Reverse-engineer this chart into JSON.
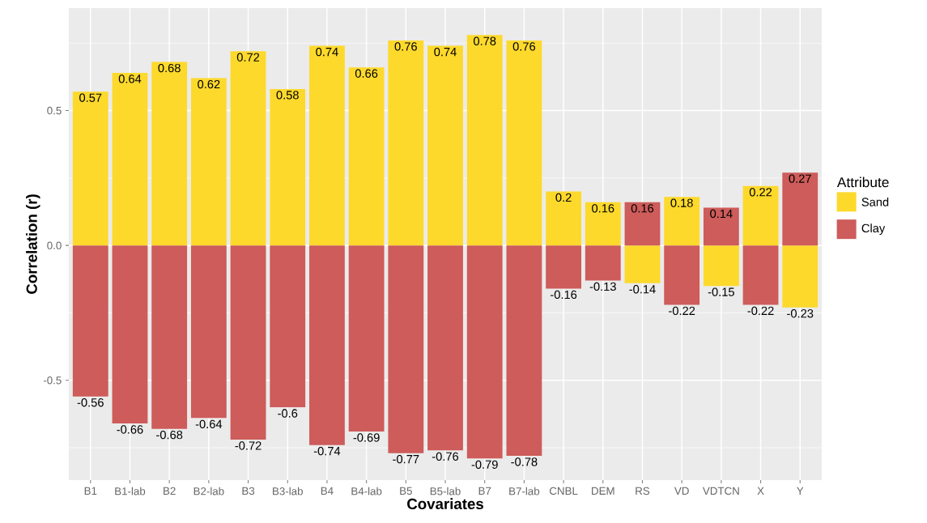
{
  "chart_data": {
    "type": "bar",
    "stacked": true,
    "xlabel": "Covariates",
    "ylabel": "Correlation (r)",
    "legend_title": "Attribute",
    "legend": "right",
    "grid": true,
    "data_labels": true,
    "categories": [
      "B1",
      "B1-lab",
      "B2",
      "B2-lab",
      "B3",
      "B3-lab",
      "B4",
      "B4-lab",
      "B5",
      "B5-lab",
      "B7",
      "B7-lab",
      "CNBL",
      "DEM",
      "RS",
      "VD",
      "VDTCN",
      "X",
      "Y"
    ],
    "series": [
      {
        "name": "Sand",
        "color": "#fdd92c",
        "values": [
          0.57,
          0.64,
          0.68,
          0.62,
          0.72,
          0.58,
          0.74,
          0.66,
          0.76,
          0.74,
          0.78,
          0.76,
          0.2,
          0.16,
          -0.14,
          0.18,
          -0.15,
          0.22,
          -0.23
        ]
      },
      {
        "name": "Clay",
        "color": "#cd5c5a",
        "values": [
          -0.56,
          -0.66,
          -0.68,
          -0.64,
          -0.72,
          -0.6,
          -0.74,
          -0.69,
          -0.77,
          -0.76,
          -0.79,
          -0.78,
          -0.16,
          -0.13,
          0.16,
          -0.22,
          0.14,
          -0.22,
          0.27
        ]
      }
    ],
    "ylim": [
      -0.87,
      0.88
    ],
    "yticks": [
      {
        "value": -0.75,
        "label": null
      },
      {
        "value": -0.5,
        "label": "-0.5"
      },
      {
        "value": -0.25,
        "label": null
      },
      {
        "value": 0,
        "label": "0.0"
      },
      {
        "value": 0.25,
        "label": null
      },
      {
        "value": 0.5,
        "label": "0.5"
      },
      {
        "value": 0.75,
        "label": null
      }
    ]
  }
}
